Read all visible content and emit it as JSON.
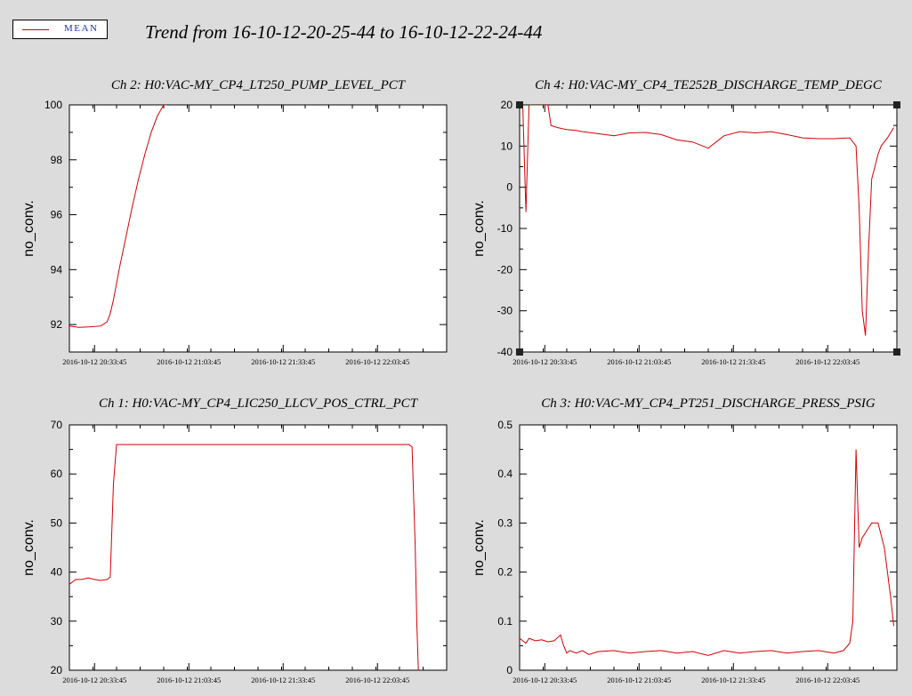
{
  "legend": {
    "label": "MEAN"
  },
  "title": "Trend from 16-10-12-20-25-44 to 16-10-12-22-24-44",
  "colors": {
    "line": "#d40000",
    "legend_text": "#1e2fb8",
    "background": "#dcdcdc",
    "plot": "#ffffff"
  },
  "chart_data": [
    {
      "id": "ch2",
      "type": "line",
      "title": "Ch 2: H0:VAC-MY_CP4_LT250_PUMP_LEVEL_PCT",
      "ylabel": "no_conv.",
      "ylim": [
        91,
        100
      ],
      "yticks": [
        92,
        94,
        96,
        98,
        100
      ],
      "xlim": [
        0,
        120
      ],
      "xtick_positions": [
        8,
        38,
        68,
        98
      ],
      "xtick_labels": [
        "2016-10-12 20:33:45",
        "2016-10-12 21:03:45",
        "2016-10-12 21:33:45",
        "2016-10-12 22:03:45"
      ],
      "series": [
        {
          "x": [
            0,
            3,
            7,
            10,
            12,
            13,
            14,
            15,
            16,
            18,
            20,
            22,
            24,
            26,
            28,
            30,
            31
          ],
          "y": [
            91.95,
            91.9,
            91.92,
            91.95,
            92.1,
            92.4,
            92.9,
            93.5,
            94.1,
            95.2,
            96.3,
            97.3,
            98.2,
            99.0,
            99.6,
            100.0,
            100.0
          ]
        }
      ]
    },
    {
      "id": "ch4",
      "type": "line",
      "title": "Ch 4: H0:VAC-MY_CP4_TE252B_DISCHARGE_TEMP_DEGC",
      "ylabel": "no_conv.",
      "ylim": [
        -40,
        20
      ],
      "yticks": [
        -40,
        -30,
        -20,
        -10,
        0,
        10,
        20
      ],
      "xlim": [
        0,
        120
      ],
      "xtick_positions": [
        8,
        38,
        68,
        98
      ],
      "xtick_labels": [
        "2016-10-12 20:33:45",
        "2016-10-12 21:03:45",
        "2016-10-12 21:33:45",
        "2016-10-12 22:03:45"
      ],
      "series": [
        {
          "x": [
            0,
            1,
            2,
            3,
            4,
            5,
            6,
            7,
            8,
            9,
            10,
            12,
            15,
            18,
            20,
            25,
            30,
            35,
            40,
            45,
            50,
            55,
            60,
            65,
            70,
            75,
            80,
            85,
            90,
            95,
            100,
            105,
            107,
            108,
            109,
            110,
            111,
            112,
            113,
            114,
            115,
            117,
            119
          ],
          "y": [
            20,
            20,
            -6,
            20,
            20,
            20,
            20,
            20,
            20,
            20,
            15,
            14.5,
            14,
            13.8,
            13.5,
            13,
            12.5,
            13.2,
            13.3,
            12.8,
            11.5,
            11,
            9.5,
            12.5,
            13.5,
            13.2,
            13.5,
            12.8,
            12.0,
            11.8,
            11.8,
            12.0,
            10,
            -5,
            -30,
            -36,
            -15,
            2,
            5,
            8,
            10,
            12,
            14.5
          ]
        }
      ]
    },
    {
      "id": "ch1",
      "type": "line",
      "title": "Ch 1: H0:VAC-MY_CP4_LIC250_LLCV_POS_CTRL_PCT",
      "ylabel": "no_conv.",
      "ylim": [
        20,
        70
      ],
      "yticks": [
        20,
        30,
        40,
        50,
        60,
        70
      ],
      "xlim": [
        0,
        120
      ],
      "xtick_positions": [
        8,
        38,
        68,
        98
      ],
      "xtick_labels": [
        "2016-10-12 20:33:45",
        "2016-10-12 21:03:45",
        "2016-10-12 21:33:45",
        "2016-10-12 22:03:45"
      ],
      "series": [
        {
          "x": [
            0,
            2,
            4,
            6,
            8,
            10,
            12,
            13,
            14,
            15,
            20,
            40,
            60,
            80,
            100,
            108,
            109,
            110,
            110.5,
            111
          ],
          "y": [
            37.5,
            38.5,
            38.5,
            38.8,
            38.5,
            38.3,
            38.5,
            39,
            58,
            66,
            66,
            66,
            66,
            66,
            66,
            66,
            65.5,
            45,
            30,
            20
          ]
        }
      ]
    },
    {
      "id": "ch3",
      "type": "line",
      "title": "Ch 3: H0:VAC-MY_CP4_PT251_DISCHARGE_PRESS_PSIG",
      "ylabel": "no_conv.",
      "ylim": [
        0,
        0.5
      ],
      "yticks": [
        0,
        0.1,
        0.2,
        0.3,
        0.4,
        0.5
      ],
      "xlim": [
        0,
        120
      ],
      "xtick_positions": [
        8,
        38,
        68,
        98
      ],
      "xtick_labels": [
        "2016-10-12 20:33:45",
        "2016-10-12 21:03:45",
        "2016-10-12 21:33:45",
        "2016-10-12 22:03:45"
      ],
      "series": [
        {
          "x": [
            0,
            1,
            2,
            3,
            5,
            7,
            9,
            11,
            13,
            14,
            15,
            16,
            18,
            20,
            22,
            25,
            30,
            35,
            40,
            45,
            50,
            55,
            60,
            65,
            70,
            75,
            80,
            85,
            90,
            95,
            100,
            103,
            105,
            106,
            107,
            108,
            109,
            110,
            112,
            114,
            116,
            118,
            119
          ],
          "y": [
            0.065,
            0.06,
            0.055,
            0.065,
            0.06,
            0.062,
            0.058,
            0.06,
            0.072,
            0.05,
            0.035,
            0.04,
            0.035,
            0.04,
            0.032,
            0.038,
            0.04,
            0.035,
            0.038,
            0.04,
            0.035,
            0.038,
            0.03,
            0.04,
            0.035,
            0.038,
            0.04,
            0.035,
            0.038,
            0.04,
            0.035,
            0.04,
            0.055,
            0.1,
            0.45,
            0.25,
            0.27,
            0.28,
            0.3,
            0.3,
            0.25,
            0.15,
            0.09
          ]
        }
      ]
    }
  ]
}
